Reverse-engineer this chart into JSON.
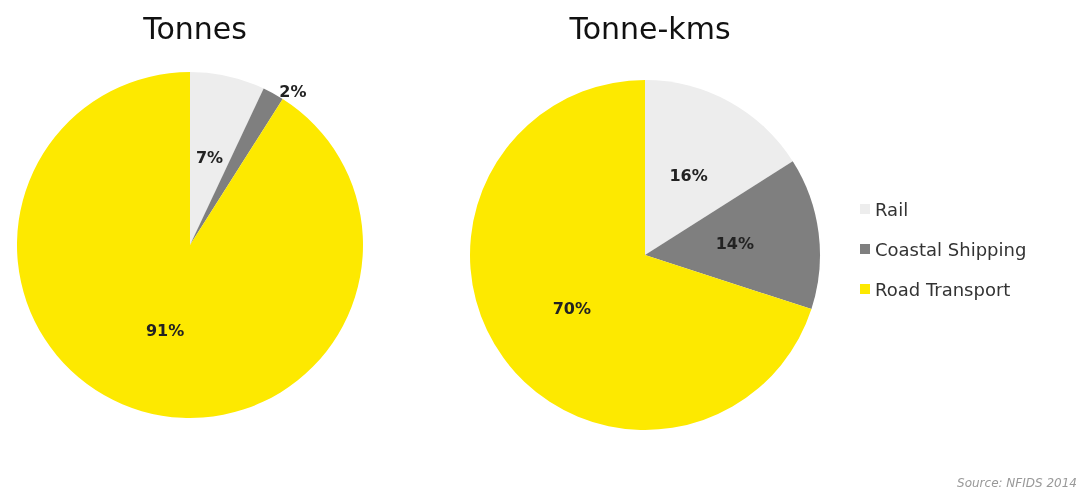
{
  "chart_data": [
    {
      "type": "pie",
      "title": "Tonnes",
      "categories": [
        null,
        null,
        null
      ],
      "values": [
        7,
        2,
        91
      ],
      "colors": [
        "#ededed",
        "#7f7f7f",
        "#fde900"
      ],
      "value_labels": [
        "7%",
        "2%",
        "91%"
      ],
      "legend": false
    },
    {
      "type": "pie",
      "title": "Tonne-kms",
      "categories": [
        "Rail",
        "Coastal Shipping",
        "Road Transport"
      ],
      "values": [
        16,
        14,
        70
      ],
      "colors": [
        "#ededed",
        "#7f7f7f",
        "#fde900"
      ],
      "value_labels": [
        "16%",
        "14%",
        "70%"
      ],
      "legend": "right",
      "annotations": [
        "Source: NFIDS 2014"
      ]
    }
  ]
}
